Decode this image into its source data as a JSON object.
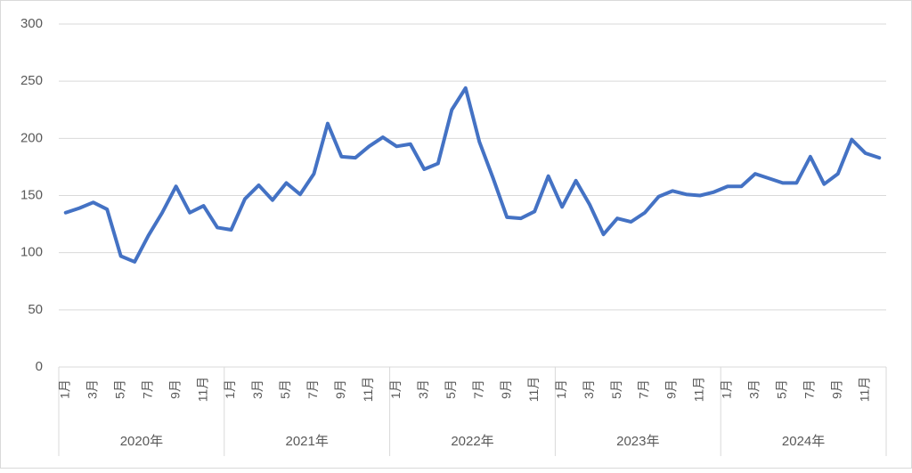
{
  "chart_data": {
    "type": "line",
    "categories": [
      "1月",
      null,
      "3月",
      null,
      "5月",
      null,
      "7月",
      null,
      "9月",
      null,
      "11月",
      null,
      "1月",
      null,
      "3月",
      null,
      "5月",
      null,
      "7月",
      null,
      "9月",
      null,
      "11月",
      null,
      "1月",
      null,
      "3月",
      null,
      "5月",
      null,
      "7月",
      null,
      "9月",
      null,
      "11月",
      null,
      "1月",
      null,
      "3月",
      null,
      "5月",
      null,
      "7月",
      null,
      "9月",
      null,
      "11月",
      null,
      "1月",
      null,
      "3月",
      null,
      "5月",
      null,
      "7月",
      null,
      "9月",
      null,
      "11月",
      null
    ],
    "groups": [
      "2020年",
      "2021年",
      "2022年",
      "2023年",
      "2024年"
    ],
    "values": [
      135,
      139,
      144,
      138,
      97,
      92,
      115,
      135,
      158,
      135,
      141,
      122,
      120,
      147,
      159,
      146,
      161,
      151,
      169,
      213,
      184,
      183,
      193,
      201,
      193,
      195,
      173,
      178,
      225,
      244,
      197,
      165,
      131,
      130,
      136,
      167,
      140,
      163,
      142,
      116,
      130,
      127,
      135,
      149,
      154,
      151,
      150,
      153,
      158,
      158,
      169,
      165,
      161,
      161,
      184,
      160,
      169,
      199,
      187,
      183
    ],
    "color": "#4472c4",
    "ylim": [
      0,
      300
    ],
    "yticks": [
      0,
      50,
      100,
      150,
      200,
      250,
      300
    ],
    "grid": true
  }
}
